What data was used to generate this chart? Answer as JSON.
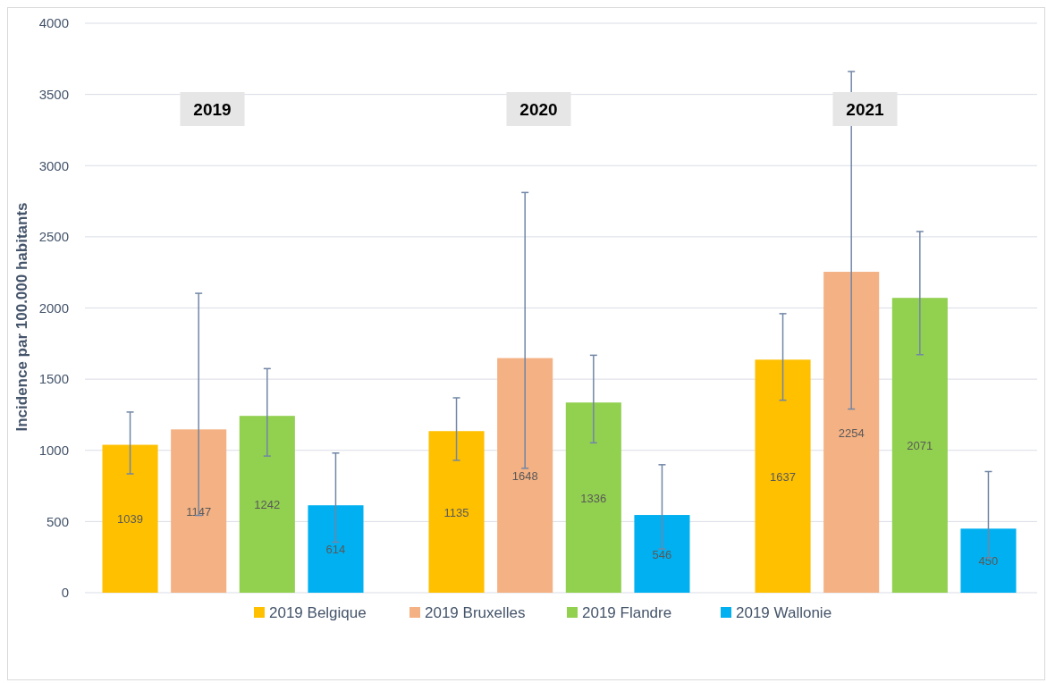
{
  "chart_data": {
    "type": "bar",
    "ylabel": "Incidence par 100.000 habitants",
    "categories": [
      "2019",
      "2020",
      "2021"
    ],
    "series": [
      {
        "name": "2019 Belgique",
        "color": "#ffc000",
        "values": [
          1039,
          1135,
          1637
        ],
        "errors": [
          [
            835,
            1269
          ],
          [
            930,
            1369
          ],
          [
            1352,
            1960
          ]
        ]
      },
      {
        "name": "2019 Bruxelles",
        "color": "#f4b183",
        "values": [
          1147,
          1648,
          2254
        ],
        "errors": [
          [
            543,
            2103
          ],
          [
            874,
            2811
          ],
          [
            1290,
            3661
          ]
        ]
      },
      {
        "name": "2019 Flandre",
        "color": "#92d050",
        "values": [
          1242,
          1336,
          2071
        ],
        "errors": [
          [
            960,
            1574
          ],
          [
            1053,
            1668
          ],
          [
            1672,
            2537
          ]
        ]
      },
      {
        "name": "2019 Wallonie",
        "color": "#00b0f0",
        "values": [
          614,
          546,
          450
        ],
        "errors": [
          [
            355,
            981
          ],
          [
            307,
            899
          ],
          [
            245,
            851
          ]
        ]
      }
    ],
    "ylim": [
      0,
      4000
    ],
    "yticks": [
      0,
      500,
      1000,
      1500,
      2000,
      2500,
      3000,
      3500,
      4000
    ],
    "grid": "y",
    "legend": "bottom",
    "data_labels": true
  }
}
